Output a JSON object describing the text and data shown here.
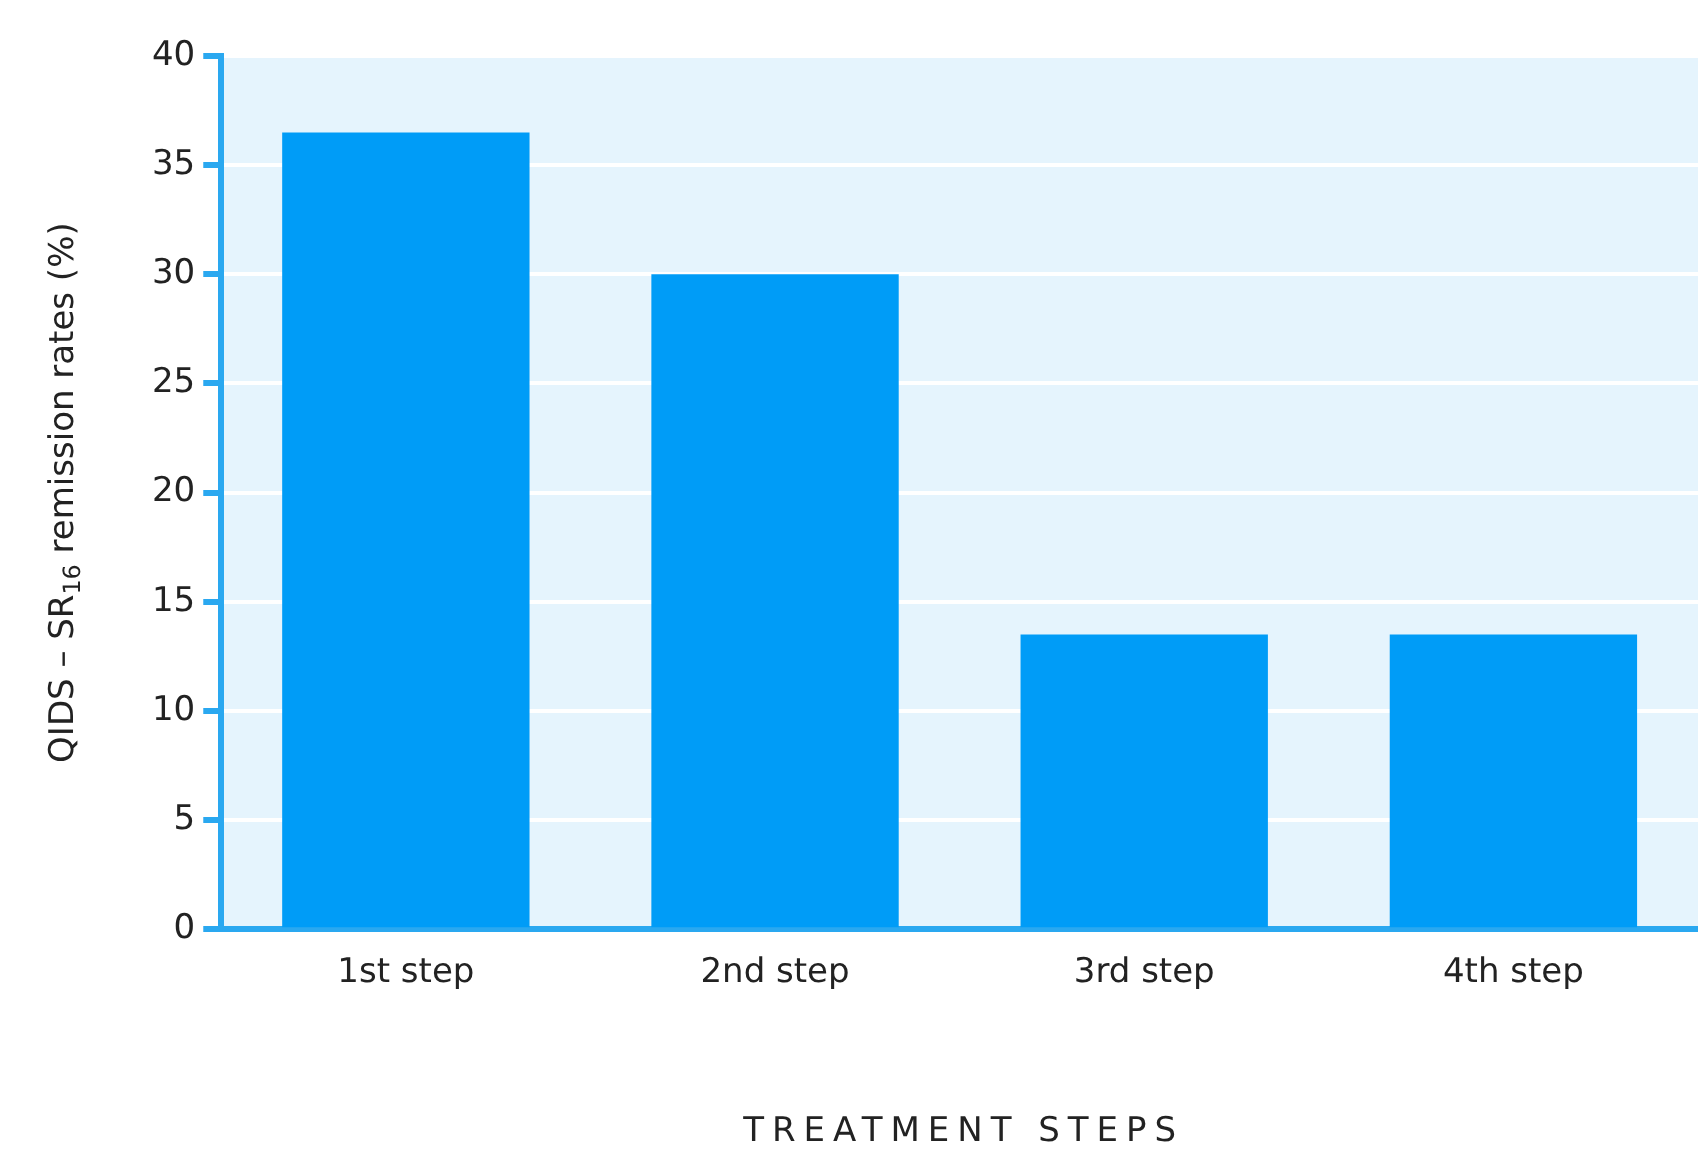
{
  "chart_data": {
    "type": "bar",
    "xlabel": "TREATMENT STEPS",
    "ylabel": "QIDS – SR$_{16}$ remission rates (%)",
    "categories": [
      "1st step",
      "2nd step",
      "3rd step",
      "4th step"
    ],
    "values": [
      36.5,
      30,
      13.5,
      13.5
    ],
    "color": "#009cf7",
    "ylim": [
      0,
      40
    ],
    "yticks": [
      0,
      5,
      10,
      15,
      20,
      25,
      30,
      35,
      40
    ],
    "grid": "y"
  }
}
